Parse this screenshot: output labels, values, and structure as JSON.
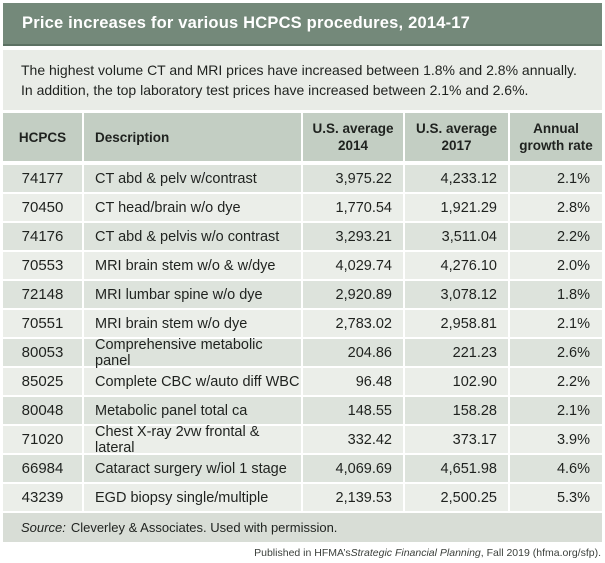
{
  "chart_data": {
    "type": "table",
    "title": "Price increases for various HCPCS procedures, 2014-17",
    "subtitle_line1": "The highest volume CT and MRI prices have increased between 1.8% and 2.8% annually.",
    "subtitle_line2": "In addition, the top laboratory test prices have increased between 2.1% and 2.6%.",
    "columns": [
      {
        "line1": "HCPCS",
        "line2": ""
      },
      {
        "line1": "Description",
        "line2": ""
      },
      {
        "line1": "U.S. average",
        "line2": "2014"
      },
      {
        "line1": "U.S. average",
        "line2": "2017"
      },
      {
        "line1": "Annual",
        "line2": "growth rate"
      }
    ],
    "rows": [
      {
        "code": "74177",
        "description": "CT abd & pelv w/contrast",
        "avg_2014": "3,975.22",
        "avg_2017": "4,233.12",
        "growth": "2.1%"
      },
      {
        "code": "70450",
        "description": "CT head/brain w/o dye",
        "avg_2014": "1,770.54",
        "avg_2017": "1,921.29",
        "growth": "2.8%"
      },
      {
        "code": "74176",
        "description": "CT abd & pelvis w/o contrast",
        "avg_2014": "3,293.21",
        "avg_2017": "3,511.04",
        "growth": "2.2%"
      },
      {
        "code": "70553",
        "description": "MRI brain stem w/o & w/dye",
        "avg_2014": "4,029.74",
        "avg_2017": "4,276.10",
        "growth": "2.0%"
      },
      {
        "code": "72148",
        "description": "MRI lumbar spine w/o dye",
        "avg_2014": "2,920.89",
        "avg_2017": "3,078.12",
        "growth": "1.8%"
      },
      {
        "code": "70551",
        "description": "MRI brain stem w/o dye",
        "avg_2014": "2,783.02",
        "avg_2017": "2,958.81",
        "growth": "2.1%"
      },
      {
        "code": "80053",
        "description": "Comprehensive metabolic panel",
        "avg_2014": "204.86",
        "avg_2017": "221.23",
        "growth": "2.6%"
      },
      {
        "code": "85025",
        "description": "Complete CBC w/auto diff WBC",
        "avg_2014": "96.48",
        "avg_2017": "102.90",
        "growth": "2.2%"
      },
      {
        "code": "80048",
        "description": "Metabolic panel total ca",
        "avg_2014": "148.55",
        "avg_2017": "158.28",
        "growth": "2.1%"
      },
      {
        "code": "71020",
        "description": "Chest X-ray 2vw frontal & lateral",
        "avg_2014": "332.42",
        "avg_2017": "373.17",
        "growth": "3.9%"
      },
      {
        "code": "66984",
        "description": "Cataract surgery w/iol 1 stage",
        "avg_2014": "4,069.69",
        "avg_2017": "4,651.98",
        "growth": "4.6%"
      },
      {
        "code": "43239",
        "description": "EGD biopsy single/multiple",
        "avg_2014": "2,139.53",
        "avg_2017": "2,500.25",
        "growth": "5.3%"
      }
    ],
    "source_label": "Source:",
    "source_text": "Cleverley & Associates. Used with permission.",
    "footer_prefix": "Published in HFMA’s ",
    "footer_italic": "Strategic Financial Planning",
    "footer_suffix": ", Fall 2019 (hfma.org/sfp).",
    "layout_hints": {
      "grid": "off",
      "row_striping": "alternating",
      "numeric_alignment": "right"
    }
  },
  "colors": {
    "title_bar": "#74897A",
    "title_bar_rule": "#5C7163",
    "subtitle_band": "#E9ECE7",
    "header_row": "#C3CEC3",
    "row_dark": "#DDE3DC",
    "row_light": "#EBEEE9",
    "source_band": "#D8DDD6",
    "title_text": "#FFFFFF",
    "body_text": "#1F221F"
  }
}
